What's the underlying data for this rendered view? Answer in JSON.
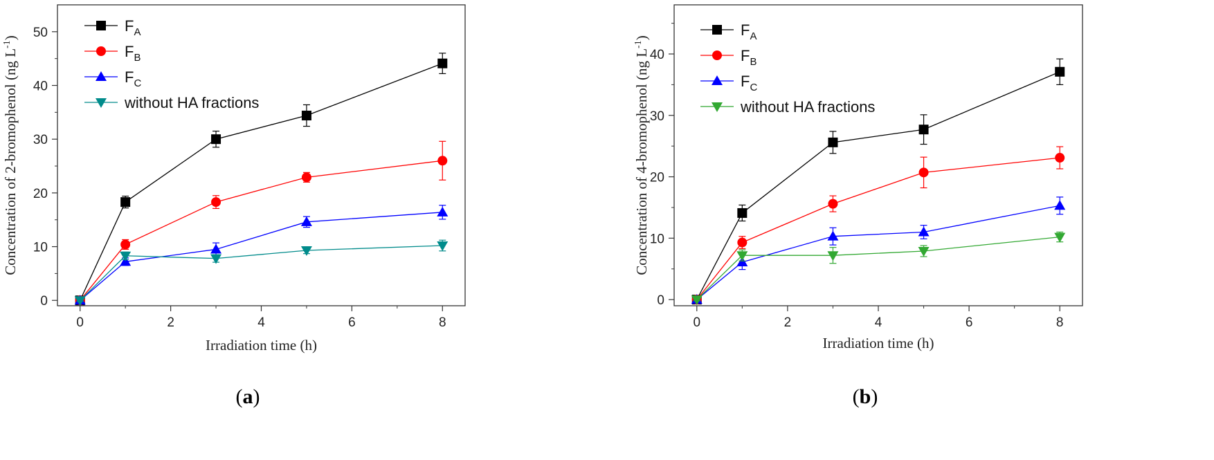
{
  "chart_data": [
    {
      "type": "line",
      "panel_label": "a",
      "xlabel": "Irradiation time (h)",
      "ylabel": "Concentration of 2-bromophenol (ng L-1)",
      "ylabel_main": "Concentration of 2-bromophenol (ng L",
      "ylabel_sup": "-1",
      "ylabel_close": ")",
      "xlim": [
        -0.5,
        8.5
      ],
      "ylim": [
        -1,
        55
      ],
      "xticks": [
        0,
        2,
        4,
        6,
        8
      ],
      "yticks": [
        0,
        10,
        20,
        30,
        40,
        50
      ],
      "x": [
        0,
        1,
        3,
        5,
        8
      ],
      "legend_position": "top-left",
      "series": [
        {
          "name": "F",
          "sub": "A",
          "marker": "square",
          "color": "#000000",
          "values": [
            0,
            18.3,
            30.0,
            34.4,
            44.1
          ],
          "errors": [
            0.2,
            1.1,
            1.5,
            2.0,
            1.9
          ]
        },
        {
          "name": "F",
          "sub": "B",
          "marker": "circle",
          "color": "#ff0000",
          "values": [
            0,
            10.4,
            18.3,
            22.9,
            26.0
          ],
          "errors": [
            0.2,
            0.9,
            1.2,
            0.9,
            3.6
          ]
        },
        {
          "name": "F",
          "sub": "C",
          "marker": "triangle-up",
          "color": "#0000ff",
          "values": [
            0,
            7.2,
            9.5,
            14.6,
            16.4
          ],
          "errors": [
            0.2,
            0.7,
            1.2,
            1.0,
            1.3
          ]
        },
        {
          "name": "without HA fractions",
          "sub": "",
          "marker": "triangle-down",
          "color": "#008b8b",
          "values": [
            0,
            8.3,
            7.8,
            9.3,
            10.2
          ],
          "errors": [
            0.2,
            0.7,
            0.7,
            0.6,
            1.0
          ]
        }
      ]
    },
    {
      "type": "line",
      "panel_label": "b",
      "xlabel": "Irradiation time (h)",
      "ylabel": "Concentration of 4-bromophenol (ng L-1)",
      "ylabel_main": "Concentration of 4-bromophenol (ng L",
      "ylabel_sup": "-1",
      "ylabel_close": ")",
      "xlim": [
        -0.5,
        8.5
      ],
      "ylim": [
        -1,
        48
      ],
      "xticks": [
        0,
        2,
        4,
        6,
        8
      ],
      "yticks": [
        0,
        10,
        20,
        30,
        40
      ],
      "x": [
        0,
        1,
        3,
        5,
        8
      ],
      "legend_position": "top-left",
      "series": [
        {
          "name": "F",
          "sub": "A",
          "marker": "square",
          "color": "#000000",
          "values": [
            0,
            14.1,
            25.6,
            27.7,
            37.1
          ],
          "errors": [
            0.2,
            1.3,
            1.8,
            2.4,
            2.1
          ]
        },
        {
          "name": "F",
          "sub": "B",
          "marker": "circle",
          "color": "#ff0000",
          "values": [
            0,
            9.3,
            15.6,
            20.7,
            23.1
          ],
          "errors": [
            0.2,
            1.0,
            1.3,
            2.5,
            1.8
          ]
        },
        {
          "name": "F",
          "sub": "C",
          "marker": "triangle-up",
          "color": "#0000ff",
          "values": [
            0,
            6.1,
            10.3,
            11.0,
            15.3
          ],
          "errors": [
            0.2,
            1.2,
            1.4,
            1.1,
            1.4
          ]
        },
        {
          "name": "without HA fractions",
          "sub": "",
          "marker": "triangle-down",
          "color": "#32a832",
          "values": [
            0,
            7.2,
            7.2,
            7.9,
            10.2
          ],
          "errors": [
            0.2,
            0.9,
            1.3,
            0.9,
            0.8
          ]
        }
      ]
    }
  ]
}
